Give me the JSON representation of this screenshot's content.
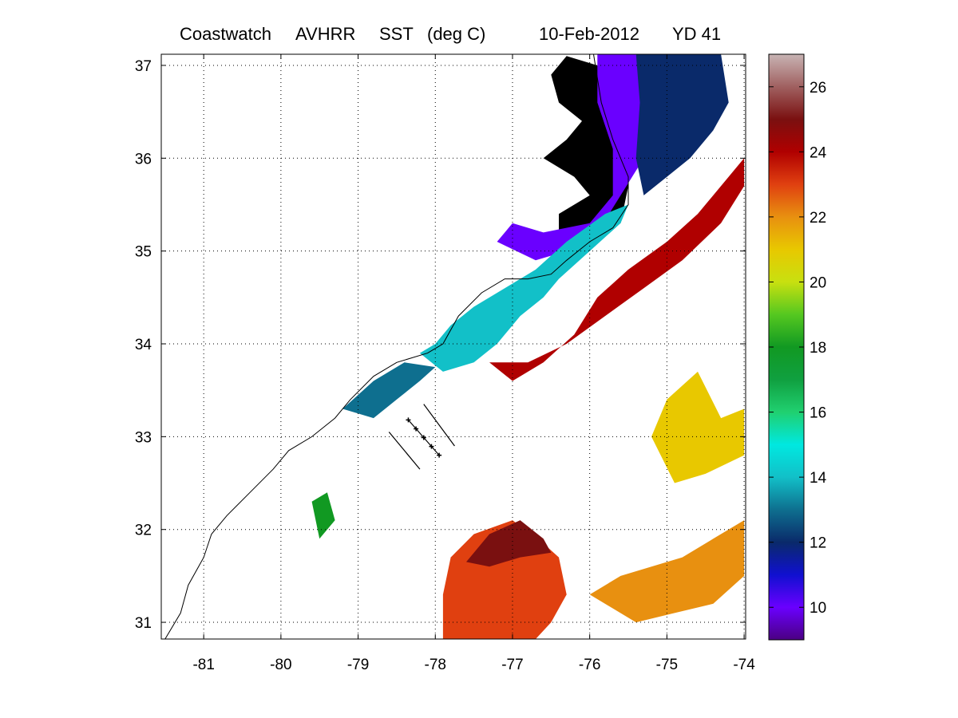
{
  "title": {
    "product": "Coastwatch",
    "sensor": "AVHRR",
    "variable": "SST",
    "units": "(deg C)",
    "date": "10-Feb-2012",
    "yearday": "YD 41"
  },
  "map": {
    "lon_range": [
      -81.55,
      -73.98
    ],
    "lat_range": [
      30.82,
      37.12
    ],
    "lon_ticks": [
      -81,
      -80,
      -79,
      -78,
      -77,
      -76,
      -75,
      -74
    ],
    "lat_ticks": [
      31,
      32,
      33,
      34,
      35,
      36,
      37
    ],
    "lon_tick_labels": [
      "-81",
      "-80",
      "-79",
      "-78",
      "-77",
      "-76",
      "-75",
      "-74"
    ],
    "lat_tick_labels": [
      "31",
      "32",
      "33",
      "34",
      "35",
      "36",
      "37"
    ],
    "grid": "dotted"
  },
  "colorbar": {
    "range": [
      9,
      27
    ],
    "ticks": [
      10,
      12,
      14,
      16,
      18,
      20,
      22,
      24,
      26
    ],
    "tick_labels": [
      "10",
      "12",
      "14",
      "16",
      "18",
      "20",
      "22",
      "24",
      "26"
    ],
    "colors": [
      [
        "9",
        "#4b0082"
      ],
      [
        "10",
        "#6a00ff"
      ],
      [
        "11",
        "#1010d0"
      ],
      [
        "12",
        "#0a2a6a"
      ],
      [
        "13",
        "#0e6f8f"
      ],
      [
        "14",
        "#12c0c8"
      ],
      [
        "15",
        "#00e8e0"
      ],
      [
        "16",
        "#20d070"
      ],
      [
        "17",
        "#10a040"
      ],
      [
        "18",
        "#119922"
      ],
      [
        "19",
        "#55c820"
      ],
      [
        "20",
        "#c8e010"
      ],
      [
        "21",
        "#e8c800"
      ],
      [
        "22",
        "#e89010"
      ],
      [
        "23",
        "#e04010"
      ],
      [
        "24",
        "#b00000"
      ],
      [
        "25",
        "#7a1010"
      ],
      [
        "26",
        "#a06060"
      ],
      [
        "27",
        "#c8b4b4"
      ]
    ]
  },
  "chart_data": {
    "type": "heatmap",
    "title": "Coastwatch  AVHRR  SST  (deg C)        10-Feb-2012    YD 41",
    "xlim": [
      -81.55,
      -73.98
    ],
    "ylim": [
      30.82,
      37.12
    ],
    "grid": true,
    "land_color": "#000000",
    "regions": [
      {
        "name": "pamlico-sound",
        "value": 7,
        "poly": [
          [
            -76.4,
            35.2
          ],
          [
            -76.0,
            35.1
          ],
          [
            -75.6,
            35.3
          ],
          [
            -75.5,
            35.7
          ],
          [
            -75.6,
            36.1
          ],
          [
            -75.8,
            36.6
          ],
          [
            -75.9,
            37.0
          ],
          [
            -76.3,
            37.1
          ],
          [
            -76.5,
            36.9
          ],
          [
            -76.4,
            36.6
          ],
          [
            -76.1,
            36.4
          ],
          [
            -76.3,
            36.2
          ],
          [
            -76.6,
            36.0
          ],
          [
            -76.2,
            35.8
          ],
          [
            -76.0,
            35.6
          ],
          [
            -76.4,
            35.4
          ]
        ]
      },
      {
        "name": "nc-coastal-band",
        "value": 10,
        "poly": [
          [
            -77.2,
            35.1
          ],
          [
            -76.7,
            34.9
          ],
          [
            -76.3,
            35.0
          ],
          [
            -75.9,
            35.2
          ],
          [
            -75.6,
            35.6
          ],
          [
            -75.3,
            36.0
          ],
          [
            -75.3,
            36.6
          ],
          [
            -75.4,
            37.12
          ],
          [
            -75.9,
            37.12
          ],
          [
            -75.9,
            36.6
          ],
          [
            -75.7,
            36.1
          ],
          [
            -75.7,
            35.6
          ],
          [
            -76.0,
            35.3
          ],
          [
            -76.6,
            35.2
          ],
          [
            -77.0,
            35.3
          ]
        ]
      },
      {
        "name": "shelf-north",
        "value": 12,
        "poly": [
          [
            -75.3,
            35.6
          ],
          [
            -75.0,
            35.8
          ],
          [
            -74.7,
            36.0
          ],
          [
            -74.4,
            36.3
          ],
          [
            -74.2,
            36.6
          ],
          [
            -74.3,
            37.12
          ],
          [
            -75.4,
            37.12
          ],
          [
            -75.35,
            36.6
          ],
          [
            -75.4,
            36.0
          ]
        ]
      },
      {
        "name": "onslow-bay-shelf",
        "value": 14,
        "poly": [
          [
            -78.2,
            33.9
          ],
          [
            -77.9,
            33.7
          ],
          [
            -77.5,
            33.8
          ],
          [
            -77.2,
            34.0
          ],
          [
            -76.9,
            34.3
          ],
          [
            -76.6,
            34.5
          ],
          [
            -76.4,
            34.7
          ],
          [
            -76.0,
            35.0
          ],
          [
            -75.6,
            35.3
          ],
          [
            -75.5,
            35.5
          ],
          [
            -75.8,
            35.4
          ],
          [
            -76.3,
            35.1
          ],
          [
            -76.7,
            34.8
          ],
          [
            -77.1,
            34.6
          ],
          [
            -77.5,
            34.4
          ],
          [
            -77.8,
            34.2
          ],
          [
            -78.0,
            34.0
          ]
        ]
      },
      {
        "name": "gulf-stream-front",
        "value": 24,
        "poly": [
          [
            -77.3,
            33.8
          ],
          [
            -77.0,
            33.6
          ],
          [
            -76.6,
            33.8
          ],
          [
            -76.2,
            34.1
          ],
          [
            -75.9,
            34.5
          ],
          [
            -75.5,
            34.8
          ],
          [
            -75.0,
            35.1
          ],
          [
            -74.6,
            35.4
          ],
          [
            -74.2,
            35.8
          ],
          [
            -74.0,
            36.0
          ],
          [
            -74.0,
            35.7
          ],
          [
            -74.3,
            35.3
          ],
          [
            -74.8,
            34.9
          ],
          [
            -75.3,
            34.6
          ],
          [
            -75.8,
            34.3
          ],
          [
            -76.3,
            34.0
          ],
          [
            -76.8,
            33.8
          ]
        ]
      },
      {
        "name": "inner-shelf-se",
        "value": 13,
        "poly": [
          [
            -79.2,
            33.3
          ],
          [
            -78.8,
            33.2
          ],
          [
            -78.5,
            33.4
          ],
          [
            -78.2,
            33.6
          ],
          [
            -78.0,
            33.75
          ],
          [
            -78.4,
            33.8
          ],
          [
            -78.8,
            33.6
          ]
        ]
      },
      {
        "name": "south-warm-core",
        "value": 23,
        "poly": [
          [
            -77.9,
            30.82
          ],
          [
            -77.9,
            31.3
          ],
          [
            -77.8,
            31.7
          ],
          [
            -77.5,
            31.95
          ],
          [
            -77.0,
            32.1
          ],
          [
            -76.6,
            31.85
          ],
          [
            -76.4,
            31.7
          ],
          [
            -76.3,
            31.3
          ],
          [
            -76.5,
            31.0
          ],
          [
            -76.7,
            30.82
          ]
        ]
      },
      {
        "name": "south-warm-core-north-edge",
        "value": 25,
        "poly": [
          [
            -77.6,
            31.65
          ],
          [
            -77.3,
            31.95
          ],
          [
            -76.9,
            32.1
          ],
          [
            -76.6,
            31.9
          ],
          [
            -76.5,
            31.75
          ],
          [
            -76.9,
            31.7
          ],
          [
            -77.3,
            31.6
          ]
        ]
      },
      {
        "name": "southeast-patch",
        "value": 22,
        "poly": [
          [
            -76.0,
            31.3
          ],
          [
            -75.6,
            31.5
          ],
          [
            -75.2,
            31.6
          ],
          [
            -74.8,
            31.7
          ],
          [
            -74.4,
            31.9
          ],
          [
            -74.0,
            32.1
          ],
          [
            -74.0,
            31.5
          ],
          [
            -74.4,
            31.2
          ],
          [
            -74.9,
            31.1
          ],
          [
            -75.4,
            31.0
          ]
        ]
      },
      {
        "name": "east-patch",
        "value": 21,
        "poly": [
          [
            -75.2,
            33.0
          ],
          [
            -75.0,
            33.4
          ],
          [
            -74.6,
            33.7
          ],
          [
            -74.3,
            33.2
          ],
          [
            -74.0,
            33.3
          ],
          [
            -74.0,
            32.8
          ],
          [
            -74.5,
            32.6
          ],
          [
            -74.9,
            32.5
          ]
        ]
      },
      {
        "name": "isolated-green",
        "value": 18,
        "poly": [
          [
            -79.6,
            32.3
          ],
          [
            -79.4,
            32.4
          ],
          [
            -79.3,
            32.1
          ],
          [
            -79.5,
            31.9
          ]
        ]
      }
    ],
    "annotations": [
      {
        "type": "transect",
        "points": [
          [
            -78.6,
            33.05
          ],
          [
            -78.2,
            32.65
          ]
        ]
      },
      {
        "type": "transect",
        "points": [
          [
            -78.15,
            33.35
          ],
          [
            -77.75,
            32.9
          ]
        ]
      },
      {
        "type": "transect-with-stations",
        "points": [
          [
            -78.35,
            33.18
          ],
          [
            -77.95,
            32.8
          ]
        ]
      }
    ],
    "coastline": [
      [
        -81.5,
        30.82
      ],
      [
        -81.3,
        31.1
      ],
      [
        -81.2,
        31.4
      ],
      [
        -81.0,
        31.7
      ],
      [
        -80.9,
        31.95
      ],
      [
        -80.7,
        32.15
      ],
      [
        -80.4,
        32.4
      ],
      [
        -80.1,
        32.65
      ],
      [
        -79.9,
        32.85
      ],
      [
        -79.6,
        33.0
      ],
      [
        -79.3,
        33.2
      ],
      [
        -79.1,
        33.4
      ],
      [
        -78.8,
        33.65
      ],
      [
        -78.5,
        33.8
      ],
      [
        -78.1,
        33.9
      ],
      [
        -77.9,
        34.0
      ],
      [
        -77.7,
        34.3
      ],
      [
        -77.4,
        34.55
      ],
      [
        -77.1,
        34.7
      ],
      [
        -76.8,
        34.7
      ],
      [
        -76.5,
        34.75
      ],
      [
        -76.3,
        34.9
      ],
      [
        -76.0,
        35.1
      ],
      [
        -75.7,
        35.25
      ],
      [
        -75.5,
        35.5
      ],
      [
        -75.5,
        35.8
      ],
      [
        -75.7,
        36.2
      ],
      [
        -75.85,
        36.6
      ],
      [
        -75.95,
        37.12
      ]
    ]
  }
}
